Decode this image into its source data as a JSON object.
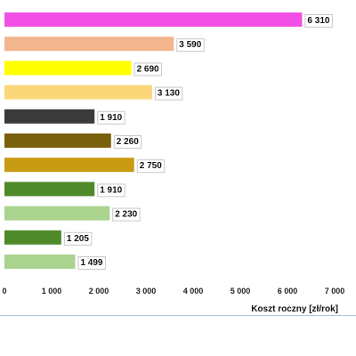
{
  "chart_data": {
    "type": "bar",
    "orientation": "horizontal",
    "categories": [
      "",
      "",
      "",
      "",
      "",
      "",
      "",
      "",
      "",
      "",
      ""
    ],
    "values": [
      6310,
      3590,
      2690,
      3130,
      1910,
      2260,
      2750,
      1910,
      2230,
      1205,
      1499
    ],
    "value_labels": [
      "6 310",
      "3 590",
      "2 690",
      "3 130",
      "1 910",
      "2 260",
      "2 750",
      "1 910",
      "2 230",
      "1 205",
      "1 499"
    ],
    "colors": [
      "#f24fe4",
      "#f3b58d",
      "#ffff00",
      "#fbd77a",
      "#3a3a3a",
      "#7a5f0c",
      "#c99a13",
      "#4f8a2a",
      "#a9d38e",
      "#4f8a2a",
      "#a9d38e"
    ],
    "xlabel": "Koszt roczny [zł/rok]",
    "ylabel": "",
    "xlim": [
      0,
      7000
    ],
    "xticks": [
      0,
      1000,
      2000,
      3000,
      4000,
      5000,
      6000,
      7000
    ],
    "xtick_labels": [
      "0",
      "1 000",
      "2 000",
      "3 000",
      "4 000",
      "5 000",
      "6 000",
      "7 000"
    ],
    "legend": "none",
    "grid": false
  }
}
